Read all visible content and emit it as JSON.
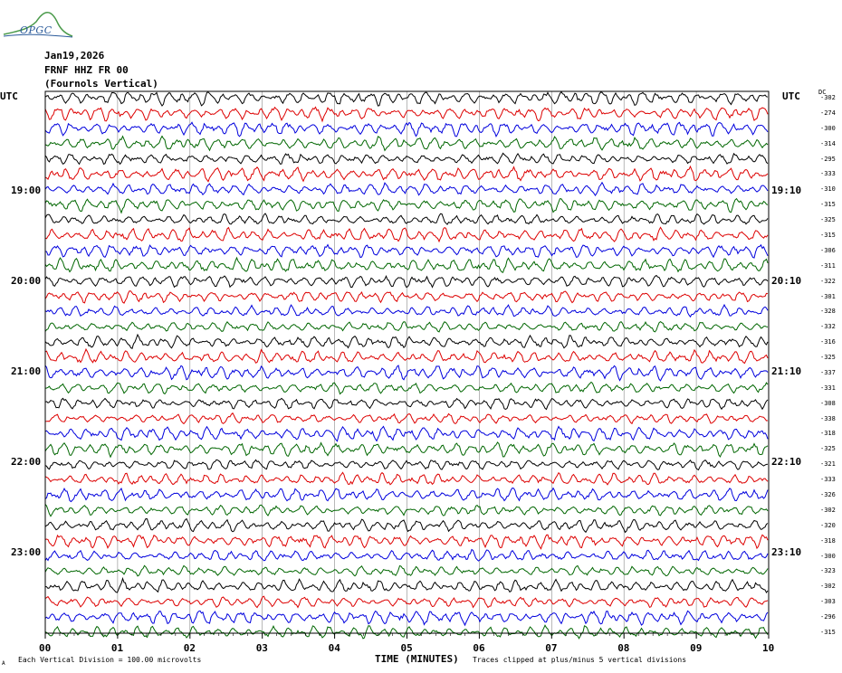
{
  "header": {
    "logo_text": "OPGC",
    "date": "Jan19,2026",
    "station": "FRNF HHZ FR 00",
    "location": "(Fournols Vertical)"
  },
  "labels": {
    "utc_left": "UTC",
    "utc_right": "UTC",
    "dc": "DC",
    "xlabel": "TIME (MINUTES)",
    "note_left": "Each Vertical Division =  100.00 microvolts",
    "note_right": "Traces clipped at plus/minus 5 vertical divisions",
    "corner_mark": "A"
  },
  "hours_left": [
    "19:00",
    "20:00",
    "21:00",
    "22:00",
    "23:00"
  ],
  "hours_right": [
    "19:10",
    "20:10",
    "21:10",
    "22:10",
    "23:10"
  ],
  "dc_values": [
    "-302",
    "-274",
    "-300",
    "-314",
    "-295",
    "-333",
    "-310",
    "-315",
    "-325",
    "-315",
    "-306",
    "-311",
    "-322",
    "-301",
    "-328",
    "-332",
    "-316",
    "-325",
    "-337",
    "-331",
    "-308",
    "-338",
    "-318",
    "-325",
    "-321",
    "-333",
    "-326",
    "-302",
    "-320",
    "-318",
    "-300",
    "-323",
    "-302",
    "-303",
    "-296",
    "-315"
  ],
  "chart_data": {
    "type": "line",
    "title": "FRNF HHZ FR 00 (Fournols Vertical)",
    "xlabel": "TIME (MINUTES)",
    "xticks": [
      "00",
      "01",
      "02",
      "03",
      "04",
      "05",
      "06",
      "07",
      "08",
      "09",
      "10"
    ],
    "xlim": [
      0,
      10
    ],
    "trace_count": 36,
    "trace_colors": [
      "#000000",
      "#dd0000",
      "#0000dd",
      "#006600"
    ],
    "grid": true
  }
}
